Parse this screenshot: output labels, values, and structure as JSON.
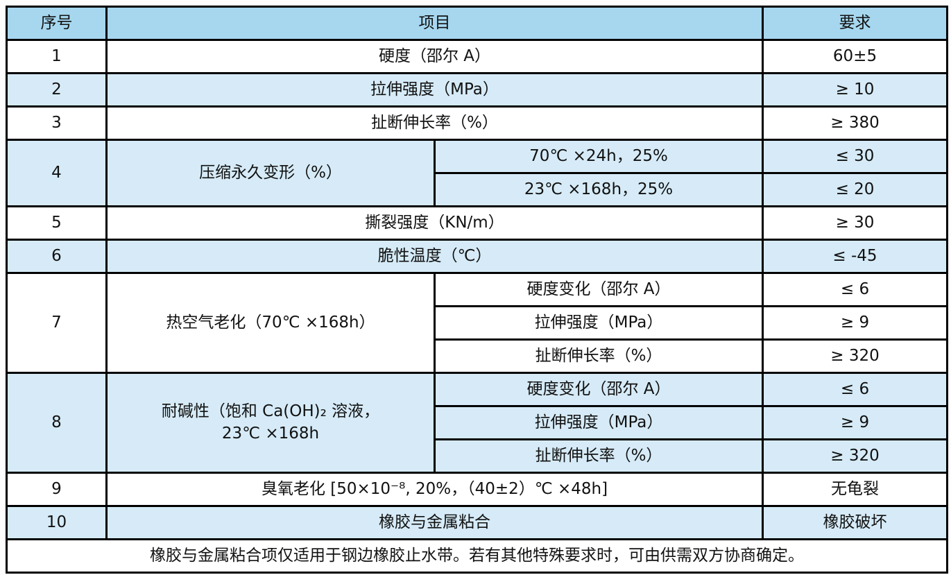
{
  "colors": {
    "header_blue": "#a6d7ef",
    "row_blue": "#d6ebf7",
    "row_white": "#ffffff",
    "border_color": "#000000",
    "text_color": "#111111",
    "page_bg": "#fdfdfd"
  },
  "table": {
    "header": {
      "col_no": "序号",
      "col_item": "项目",
      "col_req": "要求"
    },
    "rows": [
      {
        "no": "1",
        "item": "硬度（邵尔 A）",
        "req": "60±5"
      },
      {
        "no": "2",
        "item": "拉伸强度（MPa）",
        "req": "≥ 10"
      },
      {
        "no": "3",
        "item": "扯断伸长率（%）",
        "req": "≥ 380"
      },
      {
        "no": "4",
        "item": "压缩永久变形（%）",
        "sub": [
          {
            "cond": "70℃ ×24h，25%",
            "req": "≤ 30"
          },
          {
            "cond": "23℃ ×168h，25%",
            "req": "≤ 20"
          }
        ]
      },
      {
        "no": "5",
        "item": "撕裂强度（KN/m）",
        "req": "≥ 30"
      },
      {
        "no": "6",
        "item": "脆性温度（℃）",
        "req": "≤ -45"
      },
      {
        "no": "7",
        "item": "热空气老化（70℃ ×168h）",
        "sub": [
          {
            "cond": "硬度变化（邵尔 A）",
            "req": "≤ 6"
          },
          {
            "cond": "拉伸强度（MPa）",
            "req": "≥ 9"
          },
          {
            "cond": "扯断伸长率（%）",
            "req": "≥ 320"
          }
        ]
      },
      {
        "no": "8",
        "item": "耐碱性（饱和 Ca(OH)₂ 溶液，\n23℃ ×168h",
        "sub": [
          {
            "cond": "硬度变化（邵尔 A）",
            "req": "≤ 6"
          },
          {
            "cond": "拉伸强度（MPa）",
            "req": "≥ 9"
          },
          {
            "cond": "扯断伸长率（%）",
            "req": "≥ 320"
          }
        ]
      },
      {
        "no": "9",
        "item": "臭氧老化 [50×10⁻⁸, 20%，（40±2）℃ ×48h]",
        "req": "无龟裂"
      },
      {
        "no": "10",
        "item": "橡胶与金属粘合",
        "req": "橡胶破坏"
      }
    ],
    "footnote": "橡胶与金属粘合项仅适用于钢边橡胶止水带。若有其他特殊要求时，可由供需双方协商确定。"
  }
}
